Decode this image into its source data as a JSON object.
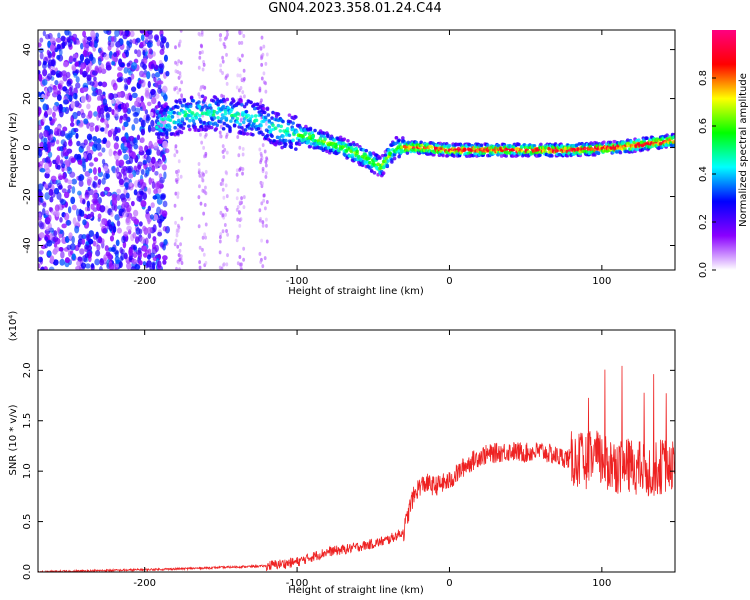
{
  "title": "GN04.2023.358.01.24.C44",
  "chart_data": [
    {
      "type": "heatmap",
      "xlabel": "Height of straight line (km)",
      "ylabel": "Frequency (Hz)",
      "xlim": [
        -270,
        148
      ],
      "ylim": [
        -50,
        48
      ],
      "xticks": [
        -200,
        -100,
        0,
        100
      ],
      "yticks": [
        -40,
        -20,
        0,
        20,
        40
      ],
      "colorbar": {
        "label": "Normalized spectral amplitude",
        "range": [
          0,
          1
        ],
        "ticks": [
          "0.0",
          "0.2",
          "0.4",
          "0.6",
          "0.8"
        ],
        "colors": [
          "#ffffff",
          "#8a00ff",
          "#0000ff",
          "#00ffff",
          "#00ff00",
          "#ffff00",
          "#ff0000",
          "#ff0080"
        ]
      },
      "ridge": {
        "height_km": [
          -190,
          -170,
          -150,
          -130,
          -110,
          -90,
          -70,
          -55,
          -45,
          -35,
          -20,
          0,
          40,
          80,
          110,
          148
        ],
        "frequency_hz": [
          10,
          14,
          14,
          12,
          7,
          4,
          0,
          -4,
          -8,
          0,
          0,
          -1,
          -1,
          -1,
          0,
          3
        ]
      }
    },
    {
      "type": "line",
      "xlabel": "Height of straight line (km)",
      "ylabel": "SNR (10 * v/v)",
      "y_multiplier": "(x10⁴)",
      "xlim": [
        -270,
        148
      ],
      "ylim": [
        0,
        2.4
      ],
      "xticks": [
        -200,
        -100,
        0,
        100
      ],
      "yticks": [
        "0.0",
        "0.5",
        "1.0",
        "1.5",
        "2.0"
      ],
      "color": "#ee2222",
      "x": [
        -270,
        -240,
        -210,
        -180,
        -160,
        -140,
        -120,
        -110,
        -100,
        -90,
        -80,
        -70,
        -60,
        -50,
        -40,
        -30,
        -25,
        -20,
        -15,
        -10,
        0,
        10,
        20,
        30,
        40,
        50,
        60,
        70,
        80,
        90,
        95,
        100,
        110,
        120,
        130,
        140,
        148
      ],
      "values": [
        0.0,
        0.01,
        0.02,
        0.03,
        0.04,
        0.05,
        0.06,
        0.08,
        0.1,
        0.15,
        0.2,
        0.22,
        0.25,
        0.28,
        0.32,
        0.4,
        0.7,
        0.85,
        0.88,
        0.85,
        0.9,
        1.05,
        1.15,
        1.18,
        1.2,
        1.18,
        1.2,
        1.15,
        1.12,
        1.1,
        1.15,
        1.1,
        1.05,
        1.05,
        1.0,
        1.05,
        1.1
      ]
    }
  ]
}
